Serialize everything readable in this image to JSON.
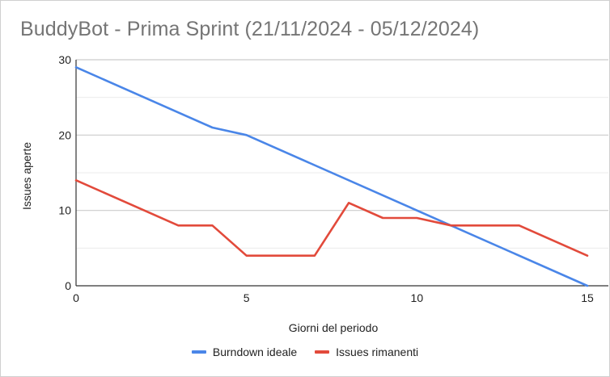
{
  "chart_data": {
    "type": "line",
    "title": "BuddyBot - Prima Sprint (21/11/2024 - 05/12/2024)",
    "xlabel": "Giorni del periodo",
    "ylabel": "Issues aperte",
    "xlim": [
      0,
      15
    ],
    "ylim": [
      0,
      30
    ],
    "x_ticks": [
      0,
      5,
      10,
      15
    ],
    "y_ticks": [
      0,
      10,
      20,
      30
    ],
    "grid": true,
    "legend_position": "bottom",
    "series": [
      {
        "name": "Burndown ideale",
        "color": "#4a86e8",
        "x": [
          0,
          4,
          5,
          15
        ],
        "y": [
          29,
          21,
          20,
          0
        ]
      },
      {
        "name": "Issues rimanenti",
        "color": "#e24a3b",
        "x": [
          0,
          3,
          4,
          5,
          6,
          7,
          8,
          9,
          10,
          11,
          12,
          13,
          15
        ],
        "y": [
          14,
          8,
          8,
          4,
          4,
          4,
          11,
          9,
          9,
          8,
          8,
          8,
          4
        ]
      }
    ]
  }
}
